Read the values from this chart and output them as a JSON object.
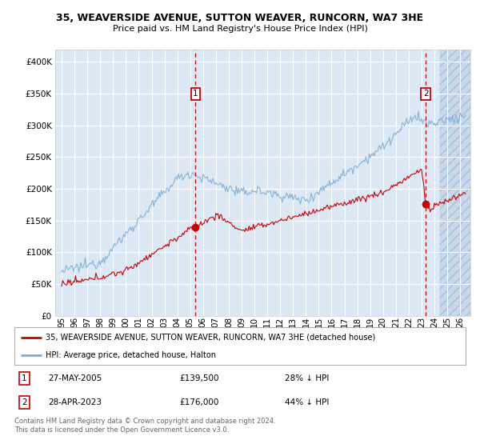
{
  "title": "35, WEAVERSIDE AVENUE, SUTTON WEAVER, RUNCORN, WA7 3HE",
  "subtitle": "Price paid vs. HM Land Registry's House Price Index (HPI)",
  "bg_color": "#dce9f5",
  "grid_color": "#ffffff",
  "red_line_color": "#cc0000",
  "blue_line_color": "#7dadd4",
  "sale1_date_num": 2005.42,
  "sale1_price": 139500,
  "sale2_date_num": 2023.33,
  "sale2_price": 176000,
  "legend_line1": "35, WEAVERSIDE AVENUE, SUTTON WEAVER, RUNCORN, WA7 3HE (detached house)",
  "legend_line2": "HPI: Average price, detached house, Halton",
  "xmin": 1994.5,
  "xmax": 2026.8,
  "ymin": 0,
  "ymax": 420000,
  "footnote1": "Contains HM Land Registry data © Crown copyright and database right 2024.",
  "footnote2": "This data is licensed under the Open Government Licence v3.0."
}
